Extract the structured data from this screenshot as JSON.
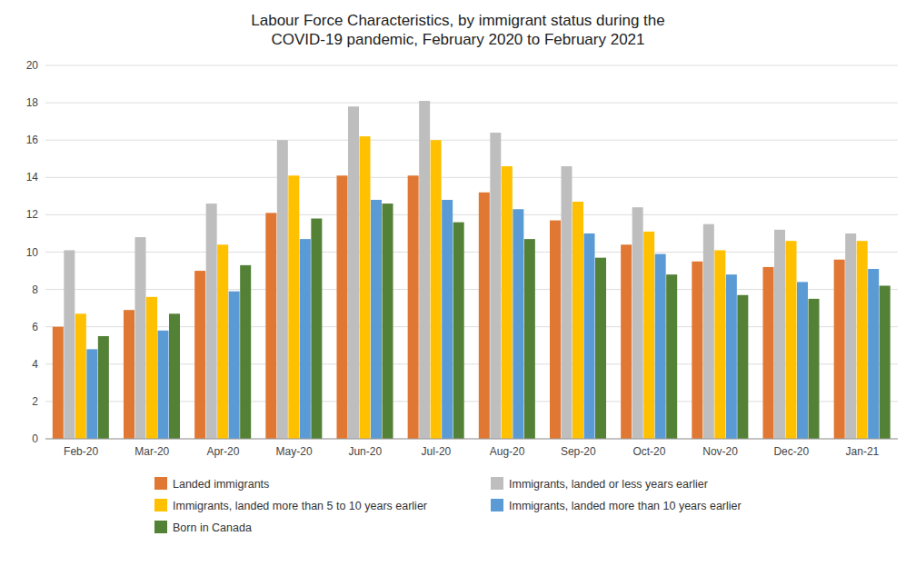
{
  "chart_data": {
    "type": "bar",
    "title": "Labour Force Characteristics, by immigrant status during the\nCOVID-19 pandemic, February 2020 to February 2021",
    "categories": [
      "Feb-20",
      "Mar-20",
      "Apr-20",
      "May-20",
      "Jun-20",
      "Jul-20",
      "Aug-20",
      "Sep-20",
      "Oct-20",
      "Nov-20",
      "Dec-20",
      "Jan-21"
    ],
    "series": [
      {
        "name": "Landed immigrants",
        "color": "#E07833",
        "values": [
          6.0,
          6.9,
          9.0,
          12.1,
          14.1,
          14.1,
          13.2,
          11.7,
          10.4,
          9.5,
          9.2,
          9.6
        ]
      },
      {
        "name": "Immigrants, landed or less years earlier",
        "color": "#BEBEBE",
        "values": [
          10.1,
          10.8,
          12.6,
          16.0,
          17.8,
          18.1,
          16.4,
          14.6,
          12.4,
          11.5,
          11.2,
          11.0
        ]
      },
      {
        "name": "Immigrants, landed more than 5 to 10 years earlier",
        "color": "#FFC000",
        "values": [
          6.7,
          7.6,
          10.4,
          14.1,
          16.2,
          16.0,
          14.6,
          12.7,
          11.1,
          10.1,
          10.6,
          10.6
        ]
      },
      {
        "name": "Immigrants, landed more than 10 years earlier",
        "color": "#5B9BD5",
        "values": [
          4.8,
          5.8,
          7.9,
          10.7,
          12.8,
          12.8,
          12.3,
          11.0,
          9.9,
          8.8,
          8.4,
          9.1
        ]
      },
      {
        "name": "Born in Canada",
        "color": "#538135",
        "values": [
          5.5,
          6.7,
          9.3,
          11.8,
          12.6,
          11.6,
          10.7,
          9.7,
          8.8,
          7.7,
          7.5,
          8.2
        ]
      }
    ],
    "ylim": [
      0,
      20
    ],
    "yticks": [
      0,
      2,
      4,
      6,
      8,
      10,
      12,
      14,
      16,
      18,
      20
    ],
    "grid": true,
    "legend": "bottom"
  }
}
